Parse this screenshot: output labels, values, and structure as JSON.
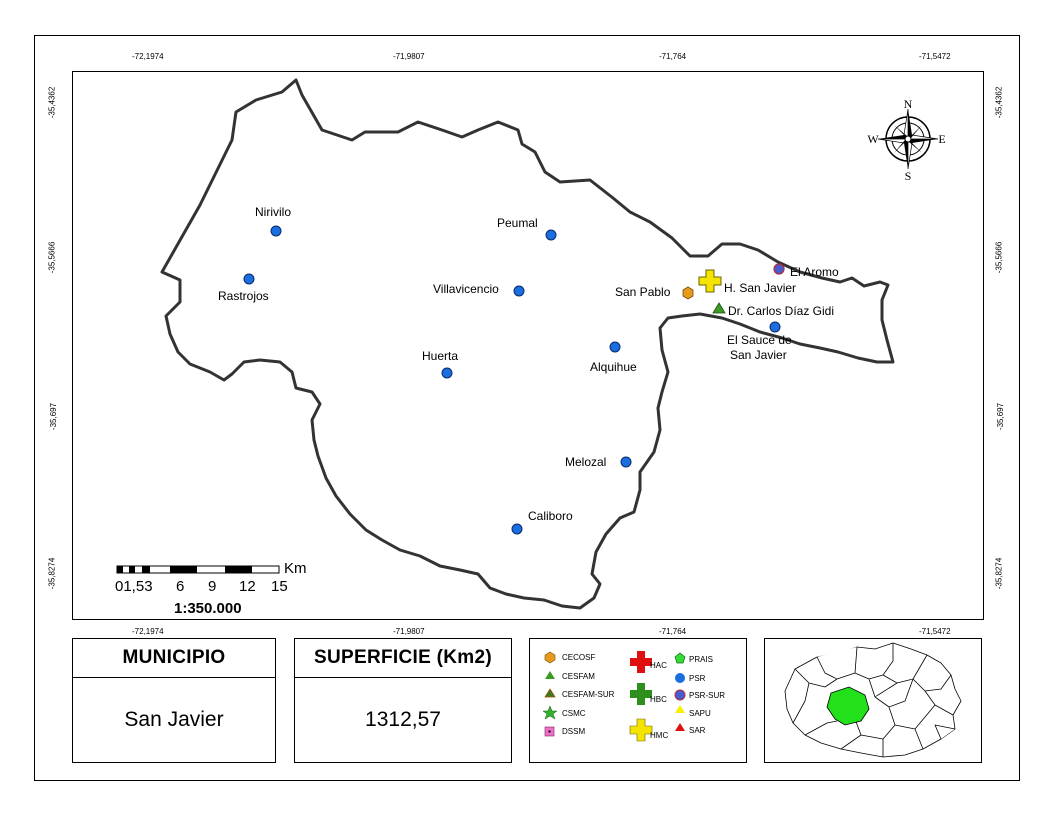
{
  "coords": {
    "top": [
      "-72,1974",
      "-71,9807",
      "-71,764",
      "-71,5472"
    ],
    "bottom": [
      "-72,1974",
      "-71,9807",
      "-71,764",
      "-71,5472"
    ],
    "left": [
      "-35,4362",
      "-35,5666",
      "-35,697",
      "-35,8274"
    ],
    "right": [
      "-35,4362",
      "-35,5666",
      "-35,697",
      "-35,8274"
    ]
  },
  "compass": {
    "n": "N",
    "s": "S",
    "e": "E",
    "w": "W"
  },
  "places": [
    {
      "label": "Nirivilo"
    },
    {
      "label": "Rastrojos"
    },
    {
      "label": "Peumal"
    },
    {
      "label": "Villavicencio"
    },
    {
      "label": "Huerta"
    },
    {
      "label": "Alquihue"
    },
    {
      "label": "Melozal"
    },
    {
      "label": "Caliboro"
    },
    {
      "label": "San Pablo"
    },
    {
      "label": "H. San Javier"
    },
    {
      "label": "Dr. Carlos Díaz Gidi"
    },
    {
      "label": "El Sauce de"
    },
    {
      "label": "San Javier"
    },
    {
      "label": "El Aromo"
    }
  ],
  "scale": {
    "unit": "Km",
    "ticks": [
      "01,53",
      "6",
      "9",
      "12",
      "15"
    ],
    "ratio": "1:350.000"
  },
  "info": {
    "municipio_label": "MUNICIPIO",
    "municipio_value": "San Javier",
    "superficie_label": "SUPERFICIE (Km2)",
    "superficie_value": "1312,57"
  },
  "legend": [
    {
      "label": "CECOSF",
      "icon": "hexagon-icon",
      "color": "#e69a1e"
    },
    {
      "label": "CESFAM",
      "icon": "triangle-icon",
      "color": "#3b9b22"
    },
    {
      "label": "CESFAM-SUR",
      "icon": "triangle-dark-icon",
      "color": "#3b7a22"
    },
    {
      "label": "CSMC",
      "icon": "star-icon",
      "color": "#2fb22a"
    },
    {
      "label": "DSSM",
      "icon": "square-icon",
      "color": "#e040b8"
    },
    {
      "label": "HAC",
      "icon": "cross-icon",
      "color": "#e01010"
    },
    {
      "label": "HBC",
      "icon": "cross-icon",
      "color": "#2f8f1e"
    },
    {
      "label": "HMC",
      "icon": "cross-icon",
      "color": "#f4e400"
    },
    {
      "label": "PRAIS",
      "icon": "pentagon-icon",
      "color": "#33dd33"
    },
    {
      "label": "PSR",
      "icon": "circle-icon",
      "color": "#1a6ee0"
    },
    {
      "label": "PSR-SUR",
      "icon": "circle-icon",
      "color": "#4a5ad0"
    },
    {
      "label": "SAPU",
      "icon": "triangle-icon",
      "color": "#f4f000"
    },
    {
      "label": "SAR",
      "icon": "triangle-icon",
      "color": "#e01010"
    }
  ]
}
